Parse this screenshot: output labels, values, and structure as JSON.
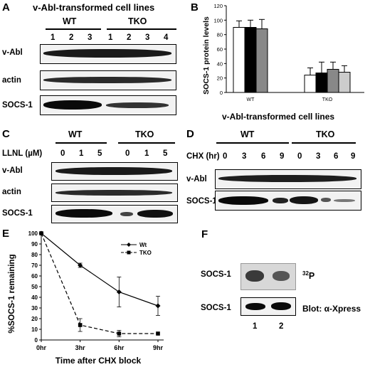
{
  "panels": {
    "A": {
      "letter": "A",
      "title": "v-Abl-transformed cell lines",
      "groups": [
        "WT",
        "TKO"
      ],
      "lanes": [
        "1",
        "2",
        "3",
        "1",
        "2",
        "3",
        "4"
      ],
      "rows": [
        "v-Abl",
        "actin",
        "SOCS-1"
      ]
    },
    "B": {
      "letter": "B",
      "xtitle": "v-Abl-transformed cell lines"
    },
    "C": {
      "letter": "C",
      "groups": [
        "WT",
        "TKO"
      ],
      "dose_label": "LLNL (µM)",
      "lanes": [
        "0",
        "1",
        "5",
        "0",
        "1",
        "5"
      ],
      "rows": [
        "v-Abl",
        "actin",
        "SOCS-1"
      ]
    },
    "D": {
      "letter": "D",
      "groups": [
        "WT",
        "TKO"
      ],
      "time_label": "CHX (hr)",
      "lanes": [
        "0",
        "3",
        "6",
        "9",
        "0",
        "3",
        "6",
        "9"
      ],
      "rows": [
        "v-Abl",
        "SOCS-1"
      ]
    },
    "E": {
      "letter": "E"
    },
    "F": {
      "letter": "F",
      "rows": [
        {
          "left": "SOCS-1",
          "right_sup": "32",
          "right": "P"
        },
        {
          "left": "SOCS-1",
          "right": "Blot: α-Xpress"
        }
      ],
      "lanes": [
        "1",
        "2"
      ]
    }
  },
  "chart_data": [
    {
      "type": "bar",
      "panel": "B",
      "title": "",
      "xlabel": "v-Abl-transformed cell lines",
      "ylabel": "SOCS-1 protein levels",
      "categories": [
        "WT",
        "TKO"
      ],
      "ylim": [
        0,
        120
      ],
      "yticks": [
        0,
        20,
        40,
        60,
        80,
        100,
        120
      ],
      "bar_colors": [
        "#ffffff",
        "#000000",
        "#888888",
        "#cccccc"
      ],
      "series_values": [
        [
          90,
          90,
          88
        ],
        [
          24,
          27,
          32,
          28
        ]
      ],
      "errors": [
        [
          9,
          10,
          13
        ],
        [
          10,
          15,
          10,
          9
        ]
      ],
      "grid": false
    },
    {
      "type": "line",
      "panel": "E",
      "title": "",
      "xlabel": "Time after CHX block",
      "ylabel": "%SOCS-1 remaining",
      "x": [
        "0hr",
        "3hr",
        "6hr",
        "9hr"
      ],
      "ylim": [
        0,
        100
      ],
      "yticks": [
        0,
        10,
        20,
        30,
        40,
        50,
        60,
        70,
        80,
        90,
        100
      ],
      "legend_position": "top-right",
      "series": [
        {
          "name": "Wt",
          "values": [
            100,
            70,
            45,
            32
          ],
          "errors": [
            0,
            2,
            14,
            9
          ],
          "style": "solid",
          "marker": "diamond"
        },
        {
          "name": "TKO",
          "values": [
            100,
            14,
            6,
            6
          ],
          "errors": [
            0,
            6,
            3,
            0
          ],
          "style": "dashed",
          "marker": "square"
        }
      ]
    }
  ]
}
